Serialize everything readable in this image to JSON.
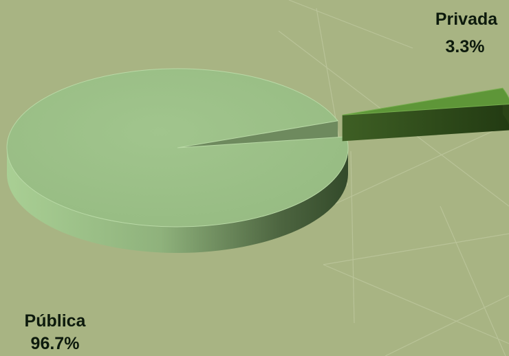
{
  "chart_data": {
    "type": "pie",
    "variant": "3d-exploded",
    "title": "",
    "slices": [
      {
        "name": "Pública",
        "value": 96.7,
        "value_label": "96.7%",
        "color": "#9ec18a",
        "side_color": "#7f9c6c"
      },
      {
        "name": "Privada",
        "value": 3.3,
        "value_label": "3.3%",
        "color": "#5e9638",
        "side_color": "#2f4a1a"
      }
    ],
    "exploded_slice": "Privada",
    "legend": "none",
    "background_color": "#a8b483"
  }
}
